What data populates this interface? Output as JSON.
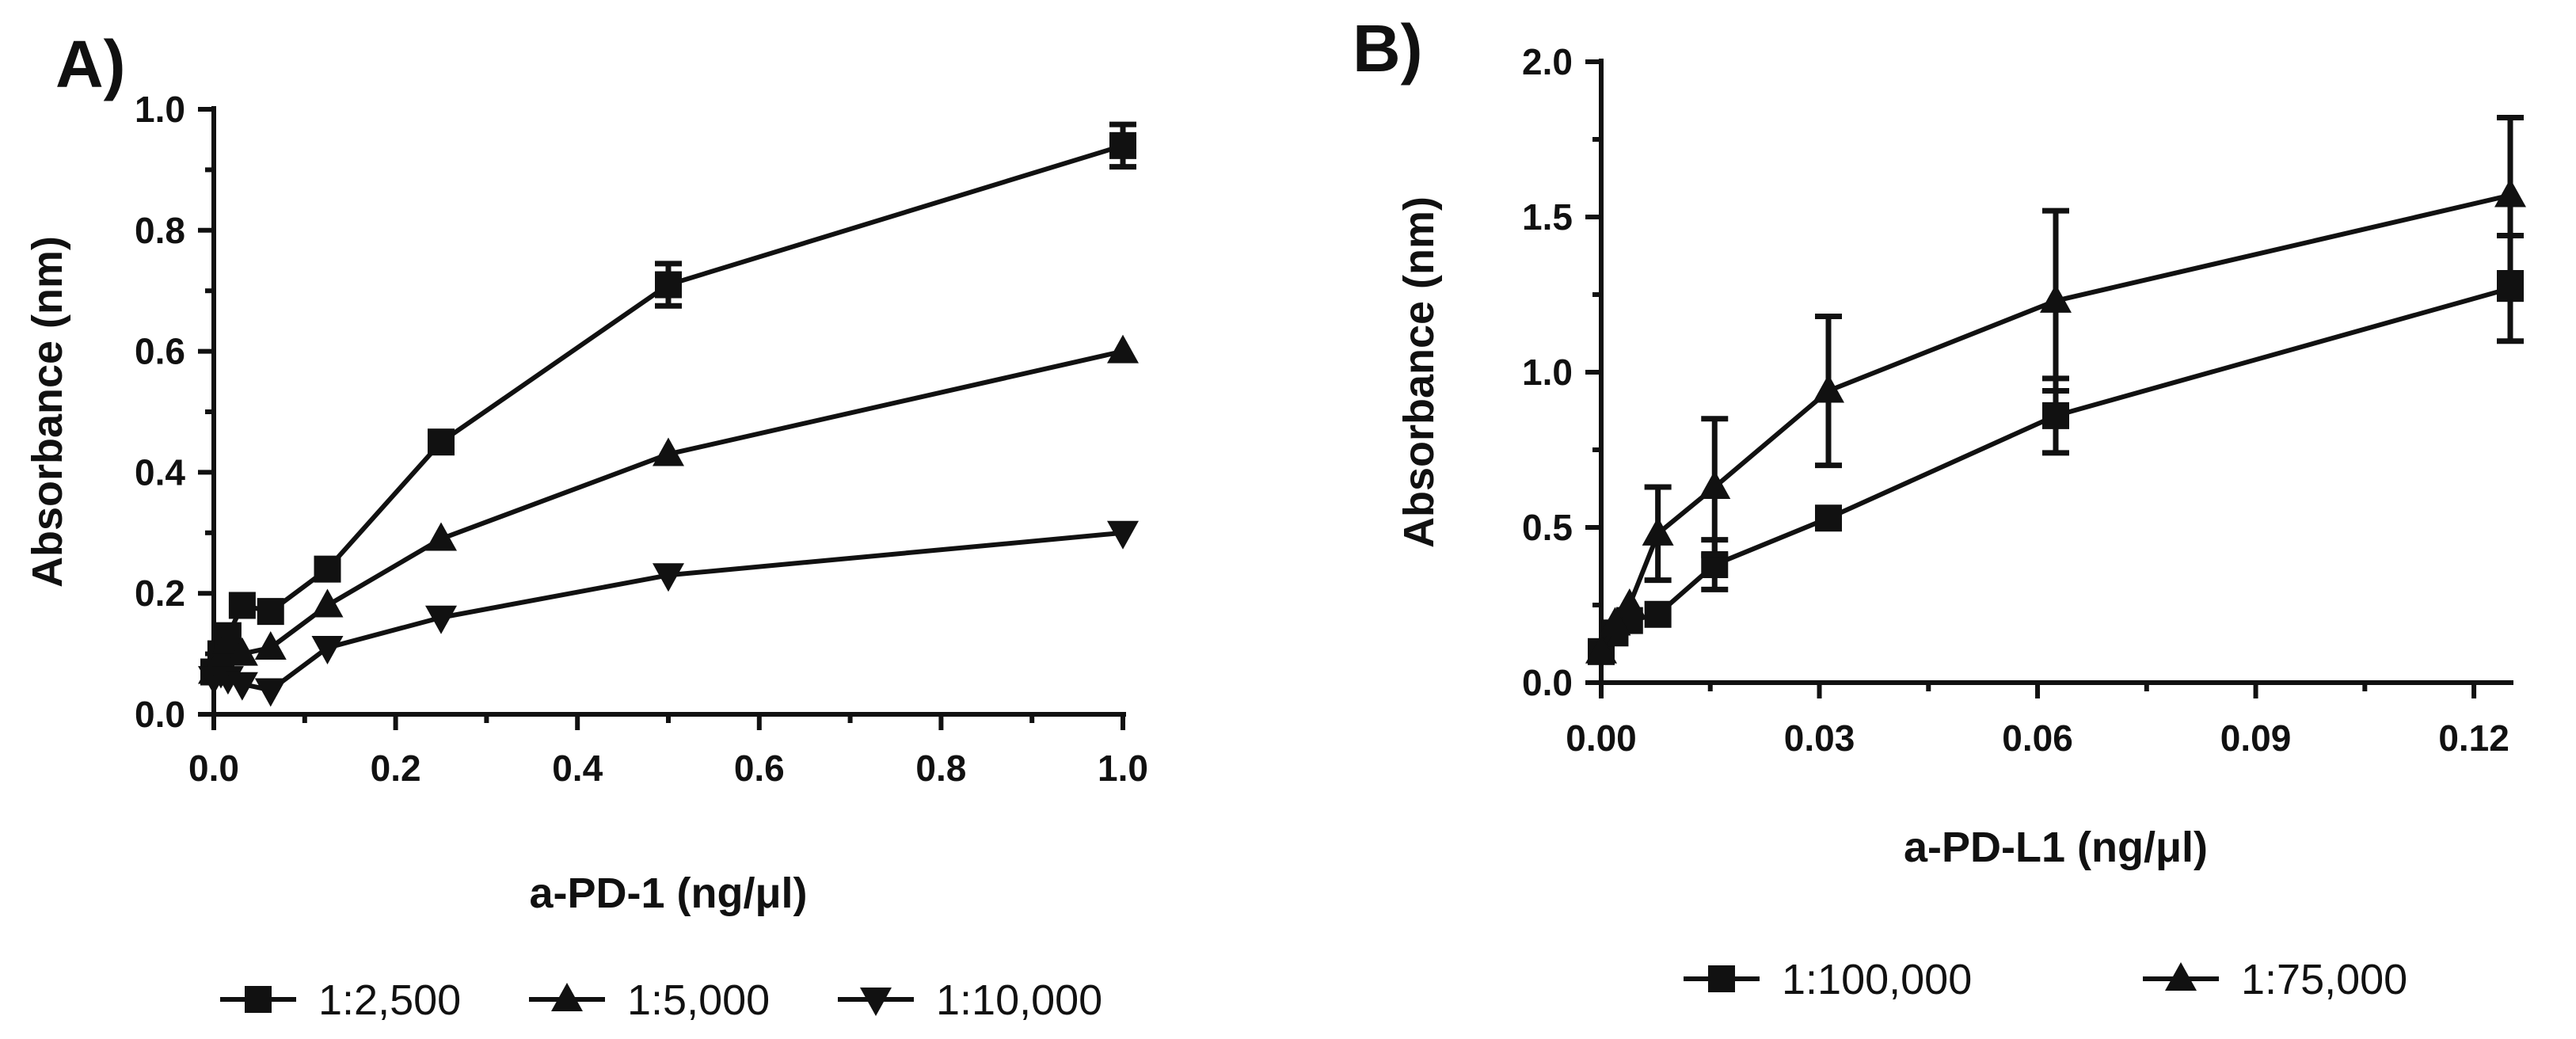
{
  "chart_data": [
    {
      "type": "line",
      "panel_label": "A)",
      "xlabel": "a-PD-1 (ng/μl)",
      "ylabel": "Absorbance (nm)",
      "xlim": [
        0,
        1.0
      ],
      "ylim": [
        0,
        1.0
      ],
      "x_ticks": [
        0.0,
        0.2,
        0.4,
        0.6,
        0.8,
        1.0
      ],
      "y_ticks": [
        0.0,
        0.2,
        0.4,
        0.6,
        0.8,
        1.0
      ],
      "x_tick_labels": [
        "0.0",
        "0.2",
        "0.4",
        "0.6",
        "0.8",
        "1.0"
      ],
      "y_tick_labels": [
        "0.0",
        "0.2",
        "0.4",
        "0.6",
        "0.8",
        "1.0"
      ],
      "legend_position": "bottom",
      "series": [
        {
          "name": "1:2,500",
          "marker": "square",
          "x": [
            0,
            0.0078,
            0.0156,
            0.03125,
            0.0625,
            0.125,
            0.25,
            0.5,
            1.0
          ],
          "y": [
            0.07,
            0.1,
            0.13,
            0.18,
            0.17,
            0.24,
            0.45,
            0.71,
            0.94
          ],
          "err": [
            0,
            0,
            0,
            0,
            0,
            0,
            0,
            0.035,
            0.035
          ]
        },
        {
          "name": "1:5,000",
          "marker": "triangle-up",
          "x": [
            0,
            0.0078,
            0.0156,
            0.03125,
            0.0625,
            0.125,
            0.25,
            0.5,
            1.0
          ],
          "y": [
            0.07,
            0.09,
            0.12,
            0.1,
            0.11,
            0.18,
            0.29,
            0.43,
            0.6
          ],
          "err": [
            0,
            0,
            0,
            0,
            0,
            0,
            0,
            0,
            0
          ]
        },
        {
          "name": "1:10,000",
          "marker": "triangle-down",
          "x": [
            0,
            0.0078,
            0.0156,
            0.03125,
            0.0625,
            0.125,
            0.25,
            0.5,
            1.0
          ],
          "y": [
            0.06,
            0.07,
            0.06,
            0.05,
            0.04,
            0.11,
            0.16,
            0.23,
            0.3
          ],
          "err": [
            0,
            0,
            0,
            0,
            0,
            0,
            0,
            0,
            0
          ]
        }
      ]
    },
    {
      "type": "line",
      "panel_label": "B)",
      "xlabel": "a-PD-L1 (ng/μl)",
      "ylabel": "Absorbance (nm)",
      "xlim": [
        0,
        0.125
      ],
      "ylim": [
        0,
        2.0
      ],
      "x_ticks": [
        0.0,
        0.03,
        0.06,
        0.09,
        0.12
      ],
      "y_ticks": [
        0.0,
        0.5,
        1.0,
        1.5,
        2.0
      ],
      "x_tick_labels": [
        "0.00",
        "0.03",
        "0.06",
        "0.09",
        "0.12"
      ],
      "y_tick_labels": [
        "0.0",
        "0.5",
        "1.0",
        "1.5",
        "2.0"
      ],
      "legend_position": "bottom",
      "series": [
        {
          "name": "1:100,000",
          "marker": "square",
          "x": [
            0,
            0.0019,
            0.0039,
            0.0078,
            0.0156,
            0.03125,
            0.0625,
            0.125
          ],
          "y": [
            0.1,
            0.16,
            0.2,
            0.22,
            0.38,
            0.53,
            0.86,
            1.27
          ],
          "err": [
            0,
            0,
            0,
            0,
            0.08,
            0.03,
            0.12,
            0.17
          ]
        },
        {
          "name": "1:75,000",
          "marker": "triangle-up",
          "x": [
            0,
            0.0019,
            0.0039,
            0.0078,
            0.0156,
            0.03125,
            0.0625,
            0.125
          ],
          "y": [
            0.1,
            0.19,
            0.25,
            0.48,
            0.63,
            0.94,
            1.23,
            1.57
          ],
          "err": [
            0,
            0,
            0,
            0.15,
            0.22,
            0.24,
            0.29,
            0.25
          ]
        }
      ]
    }
  ]
}
